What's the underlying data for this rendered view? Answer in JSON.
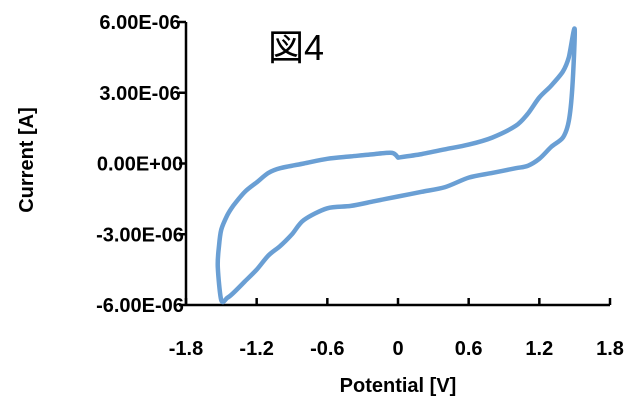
{
  "chart_data": {
    "type": "line",
    "title": "",
    "annotation": "図4",
    "xlabel": "Potential [V]",
    "ylabel": "Current [A]",
    "xlim": [
      -1.8,
      1.8
    ],
    "ylim": [
      -6e-06,
      6e-06
    ],
    "x_tick_values": [
      -1.8,
      -1.2,
      -0.6,
      0,
      0.6,
      1.2,
      1.8
    ],
    "x_tick_labels": [
      "-1.8",
      "-1.2",
      "-0.6",
      "0",
      "0.6",
      "1.2",
      "1.8"
    ],
    "y_tick_values": [
      6e-06,
      3e-06,
      0,
      -3e-06,
      -6e-06
    ],
    "y_tick_labels": [
      "6.00E-06",
      "3.00E-06",
      "0.00E+00",
      "-3.00E-06",
      "-6.00E-06"
    ],
    "grid": false,
    "legend": "none",
    "series": [
      {
        "color": "#6a9fd4",
        "x": [
          0.0,
          0.2,
          0.4,
          0.6,
          0.8,
          1.0,
          1.1,
          1.2,
          1.3,
          1.4,
          1.45,
          1.5,
          1.48,
          1.45,
          1.4,
          1.3,
          1.2,
          1.1,
          1.0,
          0.8,
          0.6,
          0.4,
          0.2,
          0.0,
          -0.2,
          -0.4,
          -0.6,
          -0.8,
          -0.9,
          -1.0,
          -1.1,
          -1.2,
          -1.3,
          -1.4,
          -1.45,
          -1.5,
          -1.53,
          -1.52,
          -1.5,
          -1.45,
          -1.4,
          -1.3,
          -1.2,
          -1.1,
          -1.0,
          -0.8,
          -0.6,
          -0.4,
          -0.2,
          -0.05,
          0.0
        ],
        "y": [
          2.5e-07,
          4e-07,
          6e-07,
          8e-07,
          1.1e-06,
          1.6e-06,
          2.1e-06,
          2.8e-06,
          3.3e-06,
          3.9e-06,
          4.5e-06,
          5.7e-06,
          3.2e-06,
          1.8e-06,
          1.1e-06,
          7e-07,
          2e-07,
          -1e-07,
          -2e-07,
          -4e-07,
          -6e-07,
          -1e-06,
          -1.2e-06,
          -1.4e-06,
          -1.6e-06,
          -1.8e-06,
          -1.9e-06,
          -2.4e-06,
          -3e-06,
          -3.5e-06,
          -3.9e-06,
          -4.5e-06,
          -5e-06,
          -5.5e-06,
          -5.7e-06,
          -5.8e-06,
          -4.4e-06,
          -3.5e-06,
          -2.8e-06,
          -2.2e-06,
          -1.8e-06,
          -1.2e-06,
          -8e-07,
          -4e-07,
          -2e-07,
          0,
          2e-07,
          3e-07,
          4e-07,
          4.5e-07,
          2.5e-07
        ]
      }
    ]
  }
}
